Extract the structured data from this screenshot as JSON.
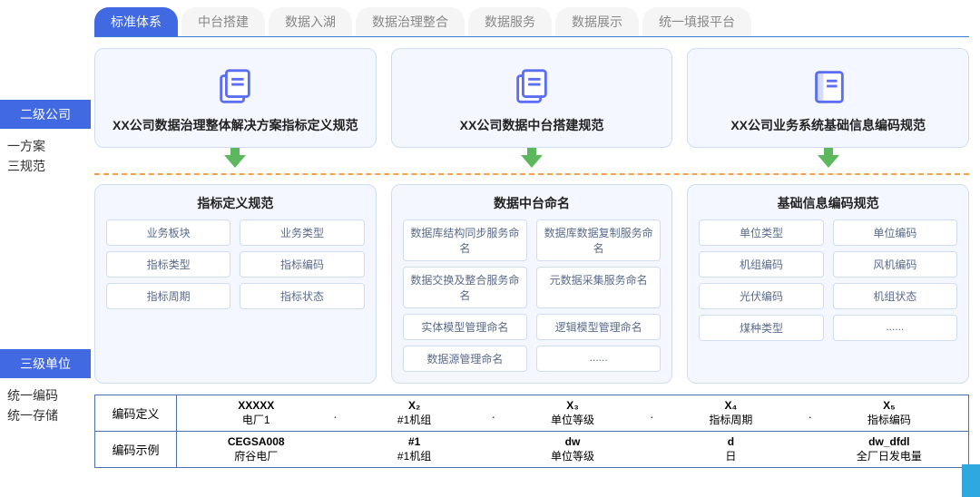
{
  "tabs": [
    "标准体系",
    "中台搭建",
    "数据入湖",
    "数据治理整合",
    "数据服务",
    "数据展示",
    "统一填报平台"
  ],
  "left": {
    "l2": "二级公司",
    "l2sub1": "一方案",
    "l2sub2": "三规范",
    "l3": "三级单位",
    "l3sub1": "统一编码",
    "l3sub2": "统一存储"
  },
  "cards": {
    "c1": "XX公司数据治理整体解决方案指标定义规范",
    "c2": "XX公司数据中台搭建规范",
    "c3": "XX公司业务系统基础信息编码规范"
  },
  "specs": {
    "s1": {
      "title": "指标定义规范",
      "items": [
        "业务板块",
        "业务类型",
        "指标类型",
        "指标编码",
        "指标周期",
        "指标状态"
      ]
    },
    "s2": {
      "title": "数据中台命名",
      "items": [
        "数据库结构同步服务命名",
        "数据库数据复制服务命名",
        "数据交换及整合服务命名",
        "元数据采集服务命名",
        "实体模型管理命名",
        "逻辑模型管理命名",
        "数据源管理命名",
        "......"
      ]
    },
    "s3": {
      "title": "基础信息编码规范",
      "items": [
        "单位类型",
        "单位编码",
        "机组编码",
        "风机编码",
        "光伏编码",
        "机组状态",
        "煤种类型",
        "......"
      ]
    }
  },
  "table": {
    "r1label": "编码定义",
    "r1": [
      {
        "t": "XXXXX",
        "b": "电厂1"
      },
      {
        "t": "X₂",
        "b": "#1机组"
      },
      {
        "t": "X₃",
        "b": "单位等级"
      },
      {
        "t": "X₄",
        "b": "指标周期"
      },
      {
        "t": "X₅",
        "b": "指标编码"
      }
    ],
    "r2label": "编码示例",
    "r2": [
      {
        "t": "CEGSA008",
        "b": "府谷电厂"
      },
      {
        "t": "#1",
        "b": "#1机组"
      },
      {
        "t": "dw",
        "b": "单位等级"
      },
      {
        "t": "d",
        "b": "日"
      },
      {
        "t": "dw_dfdl",
        "b": "全厂日发电量"
      }
    ]
  },
  "colors": {
    "primary": "#4169e1",
    "cardbg": "#f4f7ff",
    "border": "#d0dcf5",
    "arrow": "#5cb85c",
    "dash": "#f5a04c"
  }
}
